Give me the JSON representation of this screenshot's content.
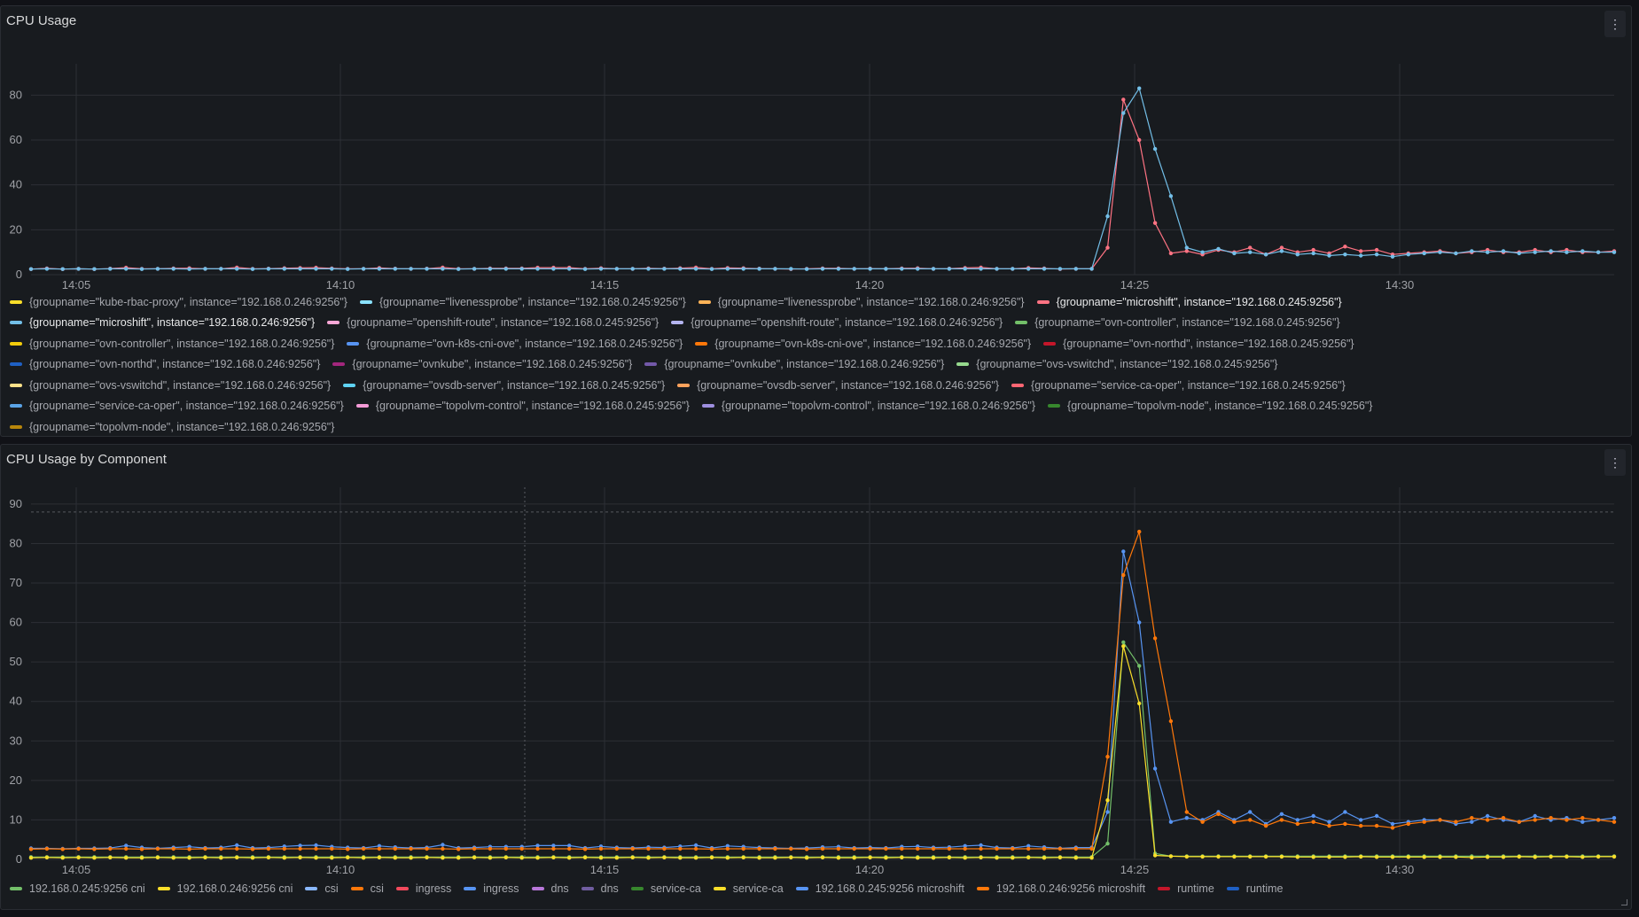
{
  "panels": [
    {
      "title": "CPU Usage",
      "menu_icon": "kebab-menu-icon",
      "chart_data": {
        "type": "line",
        "y_ticks": [
          0,
          20,
          40,
          60,
          80
        ],
        "x_ticks": [
          "14:05",
          "14:10",
          "14:15",
          "14:20",
          "14:25",
          "14:30"
        ],
        "ylim": [
          0,
          90
        ],
        "series": [
          {
            "name": "{groupname=\"microshift\", instance=\"192.168.0.245:9256\"}",
            "color": "#ff7383",
            "values": [
              2.5,
              2.8,
              2.5,
              2.6,
              2.5,
              2.7,
              3.1,
              2.6,
              2.6,
              2.8,
              2.9,
              2.6,
              2.6,
              3.2,
              2.6,
              2.7,
              2.9,
              3.0,
              3.1,
              2.8,
              2.6,
              2.6,
              3.0,
              2.7,
              2.6,
              2.7,
              3.2,
              2.6,
              2.6,
              2.8,
              2.8,
              2.8,
              3.1,
              3.1,
              3.1,
              2.6,
              2.9,
              2.6,
              2.6,
              2.8,
              2.7,
              2.9,
              3.2,
              2.6,
              3.0,
              2.9,
              2.7,
              2.6,
              2.5,
              2.6,
              2.8,
              2.8,
              2.6,
              2.7,
              2.6,
              2.8,
              2.9,
              2.6,
              2.7,
              3.0,
              3.2,
              2.6,
              2.6,
              3.0,
              2.8,
              2.5,
              2.6,
              2.6,
              12.0,
              78.0,
              60.0,
              23.0,
              9.5,
              10.5,
              9.0,
              11.0,
              10.0,
              12.0,
              9.0,
              12.0,
              10.0,
              11.0,
              9.5,
              12.5,
              10.5,
              11.0,
              9.0,
              9.5,
              10.0,
              10.5,
              9.5,
              10.0,
              11.0,
              10.0,
              10.0,
              11.0,
              10.0,
              11.0,
              10.0,
              10.0,
              10.5
            ]
          },
          {
            "name": "{groupname=\"microshift\", instance=\"192.168.0.246:9256\"}",
            "color": "#73bfe8",
            "values": [
              2.5,
              2.6,
              2.5,
              2.6,
              2.5,
              2.6,
              2.6,
              2.5,
              2.6,
              2.6,
              2.5,
              2.6,
              2.6,
              2.6,
              2.5,
              2.6,
              2.6,
              2.6,
              2.6,
              2.6,
              2.5,
              2.6,
              2.6,
              2.6,
              2.6,
              2.6,
              2.6,
              2.5,
              2.6,
              2.6,
              2.6,
              2.6,
              2.6,
              2.6,
              2.6,
              2.5,
              2.6,
              2.6,
              2.6,
              2.6,
              2.6,
              2.6,
              2.6,
              2.5,
              2.6,
              2.6,
              2.6,
              2.6,
              2.6,
              2.5,
              2.6,
              2.6,
              2.6,
              2.6,
              2.6,
              2.6,
              2.6,
              2.6,
              2.6,
              2.6,
              2.6,
              2.6,
              2.6,
              2.6,
              2.6,
              2.6,
              2.6,
              2.6,
              26.0,
              72.0,
              83.0,
              56.0,
              35.0,
              12.0,
              10.0,
              11.5,
              9.5,
              10.0,
              9.0,
              10.5,
              9.0,
              9.5,
              8.5,
              9.0,
              8.5,
              9.0,
              8.0,
              9.0,
              9.5,
              10.0,
              9.5,
              10.5,
              10.0,
              10.5,
              9.5,
              10.0,
              10.5,
              10.0,
              10.5,
              10.0,
              10.0
            ]
          }
        ]
      },
      "legend_rows": [
        [
          {
            "label": "{groupname=\"kube-rbac-proxy\", instance=\"192.168.0.246:9256\"}",
            "color": "#fade2a"
          },
          {
            "label": "{groupname=\"livenessprobe\", instance=\"192.168.0.245:9256\"}",
            "color": "#8ae2ff"
          },
          {
            "label": "{groupname=\"livenessprobe\", instance=\"192.168.0.246:9256\"}",
            "color": "#ffb357"
          },
          {
            "label": "{groupname=\"microshift\", instance=\"192.168.0.245:9256\"}",
            "color": "#ff7383",
            "highlight": true
          }
        ],
        [
          {
            "label": "{groupname=\"microshift\", instance=\"192.168.0.246:9256\"}",
            "color": "#73bfe8",
            "highlight": true
          },
          {
            "label": "{groupname=\"openshift-route\", instance=\"192.168.0.245:9256\"}",
            "color": "#f9a7d6"
          },
          {
            "label": "{groupname=\"openshift-route\", instance=\"192.168.0.246:9256\"}",
            "color": "#b4b4f0"
          },
          {
            "label": "{groupname=\"ovn-controller\", instance=\"192.168.0.245:9256\"}",
            "color": "#73bf69"
          }
        ],
        [
          {
            "label": "{groupname=\"ovn-controller\", instance=\"192.168.0.246:9256\"}",
            "color": "#f2cc0c"
          },
          {
            "label": "{groupname=\"ovn-k8s-cni-ove\", instance=\"192.168.0.245:9256\"}",
            "color": "#5794f2"
          },
          {
            "label": "{groupname=\"ovn-k8s-cni-ove\", instance=\"192.168.0.246:9256\"}",
            "color": "#ff780a"
          },
          {
            "label": "{groupname=\"ovn-northd\", instance=\"192.168.0.245:9256\"}",
            "color": "#c4162a"
          }
        ],
        [
          {
            "label": "{groupname=\"ovn-northd\", instance=\"192.168.0.246:9256\"}",
            "color": "#1f60c4"
          },
          {
            "label": "{groupname=\"ovnkube\", instance=\"192.168.0.245:9256\"}",
            "color": "#a3267d"
          },
          {
            "label": "{groupname=\"ovnkube\", instance=\"192.168.0.246:9256\"}",
            "color": "#7359a9"
          },
          {
            "label": "{groupname=\"ovs-vswitchd\", instance=\"192.168.0.245:9256\"}",
            "color": "#96d98d"
          }
        ],
        [
          {
            "label": "{groupname=\"ovs-vswitchd\", instance=\"192.168.0.246:9256\"}",
            "color": "#ffe28a"
          },
          {
            "label": "{groupname=\"ovsdb-server\", instance=\"192.168.0.245:9256\"}",
            "color": "#5fd3f3"
          },
          {
            "label": "{groupname=\"ovsdb-server\", instance=\"192.168.0.246:9256\"}",
            "color": "#ffa25c"
          },
          {
            "label": "{groupname=\"service-ca-oper\", instance=\"192.168.0.245:9256\"}",
            "color": "#ff6673"
          }
        ],
        [
          {
            "label": "{groupname=\"service-ca-oper\", instance=\"192.168.0.246:9256\"}",
            "color": "#5aa3e6"
          },
          {
            "label": "{groupname=\"topolvm-control\", instance=\"192.168.0.245:9256\"}",
            "color": "#f49ad6"
          },
          {
            "label": "{groupname=\"topolvm-control\", instance=\"192.168.0.246:9256\"}",
            "color": "#9e8fdf"
          },
          {
            "label": "{groupname=\"topolvm-node\", instance=\"192.168.0.245:9256\"}",
            "color": "#37872d"
          }
        ],
        [
          {
            "label": "{groupname=\"topolvm-node\", instance=\"192.168.0.246:9256\"}",
            "color": "#b8860b"
          }
        ]
      ]
    },
    {
      "title": "CPU Usage by Component",
      "menu_icon": "kebab-menu-icon",
      "chart_data": {
        "type": "line",
        "y_ticks": [
          0,
          10,
          20,
          30,
          40,
          50,
          60,
          70,
          80,
          90
        ],
        "x_ticks": [
          "14:05",
          "14:10",
          "14:15",
          "14:20",
          "14:25",
          "14:30"
        ],
        "ylim": [
          0,
          92
        ],
        "threshold_line": 88,
        "series": [
          {
            "name": "192.168.0.245:9256 microshift",
            "color": "#5794f2",
            "values": [
              2.8,
              2.8,
              2.7,
              2.8,
              2.8,
              2.9,
              3.5,
              3.0,
              2.8,
              3.0,
              3.2,
              2.9,
              3.0,
              3.6,
              2.9,
              3.0,
              3.3,
              3.5,
              3.6,
              3.2,
              3.0,
              2.9,
              3.4,
              3.1,
              2.9,
              3.0,
              3.7,
              2.9,
              3.0,
              3.2,
              3.2,
              3.2,
              3.5,
              3.5,
              3.5,
              2.9,
              3.3,
              3.0,
              2.9,
              3.1,
              3.0,
              3.3,
              3.6,
              2.9,
              3.4,
              3.2,
              3.0,
              2.9,
              2.8,
              2.9,
              3.1,
              3.2,
              2.9,
              3.0,
              2.9,
              3.2,
              3.3,
              3.0,
              3.1,
              3.4,
              3.6,
              3.0,
              2.9,
              3.4,
              3.1,
              2.8,
              3.0,
              3.0,
              12.0,
              78.0,
              60.0,
              23.0,
              9.5,
              10.5,
              10.0,
              12.0,
              10.0,
              12.0,
              9.0,
              11.5,
              10.0,
              11.0,
              9.5,
              12.0,
              10.0,
              11.0,
              9.0,
              9.5,
              10.0,
              10.0,
              9.0,
              9.5,
              11.0,
              10.0,
              9.5,
              11.0,
              10.0,
              10.5,
              9.5,
              10.0,
              10.5
            ]
          },
          {
            "name": "192.168.0.246:9256 microshift",
            "color": "#ff780a",
            "values": [
              2.6,
              2.7,
              2.6,
              2.7,
              2.6,
              2.7,
              2.7,
              2.6,
              2.7,
              2.7,
              2.6,
              2.7,
              2.7,
              2.7,
              2.6,
              2.7,
              2.7,
              2.7,
              2.7,
              2.7,
              2.6,
              2.7,
              2.7,
              2.7,
              2.7,
              2.7,
              2.7,
              2.6,
              2.7,
              2.7,
              2.7,
              2.7,
              2.7,
              2.7,
              2.7,
              2.6,
              2.7,
              2.7,
              2.7,
              2.7,
              2.7,
              2.7,
              2.7,
              2.6,
              2.7,
              2.7,
              2.7,
              2.7,
              2.7,
              2.6,
              2.7,
              2.7,
              2.7,
              2.7,
              2.7,
              2.7,
              2.7,
              2.7,
              2.7,
              2.7,
              2.7,
              2.7,
              2.7,
              2.7,
              2.7,
              2.7,
              2.7,
              2.7,
              26.0,
              72.0,
              83.0,
              56.0,
              35.0,
              12.0,
              9.5,
              11.5,
              9.5,
              10.0,
              8.5,
              10.0,
              9.0,
              9.5,
              8.5,
              9.0,
              8.5,
              8.5,
              8.0,
              9.0,
              9.5,
              10.0,
              9.5,
              10.5,
              10.0,
              10.5,
              9.5,
              10.0,
              10.5,
              10.0,
              10.5,
              10.0,
              9.5
            ]
          },
          {
            "name": "192.168.0.245:9256 cni",
            "color": "#73bf69",
            "values": [
              0.6,
              0.6,
              0.6,
              0.6,
              0.6,
              0.6,
              0.6,
              0.6,
              0.6,
              0.6,
              0.6,
              0.6,
              0.6,
              0.6,
              0.6,
              0.6,
              0.6,
              0.6,
              0.6,
              0.6,
              0.6,
              0.6,
              0.6,
              0.6,
              0.6,
              0.6,
              0.6,
              0.6,
              0.6,
              0.6,
              0.6,
              0.6,
              0.6,
              0.6,
              0.6,
              0.6,
              0.6,
              0.6,
              0.6,
              0.6,
              0.6,
              0.6,
              0.6,
              0.6,
              0.6,
              0.6,
              0.6,
              0.6,
              0.6,
              0.6,
              0.6,
              0.6,
              0.6,
              0.6,
              0.6,
              0.6,
              0.6,
              0.6,
              0.6,
              0.6,
              0.6,
              0.6,
              0.6,
              0.6,
              0.6,
              0.6,
              0.6,
              0.6,
              4.0,
              55.0,
              49.0,
              1.5,
              0.8,
              0.8,
              0.8,
              0.8,
              0.8,
              0.8,
              0.8,
              0.8,
              0.8,
              0.8,
              0.8,
              0.8,
              0.8,
              0.8,
              0.8,
              0.8,
              0.8,
              0.8,
              0.8,
              0.8,
              0.8,
              0.8,
              0.8,
              0.8,
              0.8,
              0.8,
              0.8,
              0.8,
              0.8
            ]
          },
          {
            "name": "192.168.0.246:9256 cni",
            "color": "#fade2a",
            "values": [
              0.4,
              0.5,
              0.4,
              0.5,
              0.4,
              0.5,
              0.4,
              0.4,
              0.5,
              0.4,
              0.4,
              0.5,
              0.4,
              0.5,
              0.4,
              0.5,
              0.4,
              0.5,
              0.4,
              0.4,
              0.5,
              0.4,
              0.5,
              0.4,
              0.4,
              0.5,
              0.4,
              0.4,
              0.5,
              0.4,
              0.5,
              0.4,
              0.4,
              0.5,
              0.4,
              0.5,
              0.4,
              0.4,
              0.5,
              0.4,
              0.5,
              0.4,
              0.4,
              0.5,
              0.4,
              0.5,
              0.4,
              0.4,
              0.5,
              0.4,
              0.5,
              0.4,
              0.4,
              0.5,
              0.4,
              0.5,
              0.4,
              0.4,
              0.5,
              0.4,
              0.5,
              0.4,
              0.4,
              0.5,
              0.4,
              0.5,
              0.4,
              0.4,
              15.0,
              54.0,
              39.5,
              1.0,
              0.8,
              0.7,
              0.7,
              0.7,
              0.7,
              0.7,
              0.7,
              0.7,
              0.6,
              0.6,
              0.6,
              0.6,
              0.7,
              0.6,
              0.6,
              0.6,
              0.6,
              0.6,
              0.6,
              0.5,
              0.6,
              0.6,
              0.7,
              0.6,
              0.7,
              0.7,
              0.6,
              0.7,
              0.7
            ]
          }
        ]
      },
      "legend_items": [
        {
          "label": "192.168.0.245:9256 cni",
          "color": "#73bf69"
        },
        {
          "label": "192.168.0.246:9256 cni",
          "color": "#fade2a"
        },
        {
          "label": "csi",
          "color": "#8ab8ff"
        },
        {
          "label": "csi",
          "color": "#ff780a"
        },
        {
          "label": "ingress",
          "color": "#f2495c"
        },
        {
          "label": "ingress",
          "color": "#5794f2"
        },
        {
          "label": "dns",
          "color": "#b877d9"
        },
        {
          "label": "dns",
          "color": "#705da0"
        },
        {
          "label": "service-ca",
          "color": "#37872d"
        },
        {
          "label": "service-ca",
          "color": "#fade2a"
        },
        {
          "label": "192.168.0.245:9256 microshift",
          "color": "#5794f2"
        },
        {
          "label": "192.168.0.246:9256 microshift",
          "color": "#ff780a"
        },
        {
          "label": "runtime",
          "color": "#c4162a"
        },
        {
          "label": "runtime",
          "color": "#1f60c4"
        }
      ]
    }
  ]
}
